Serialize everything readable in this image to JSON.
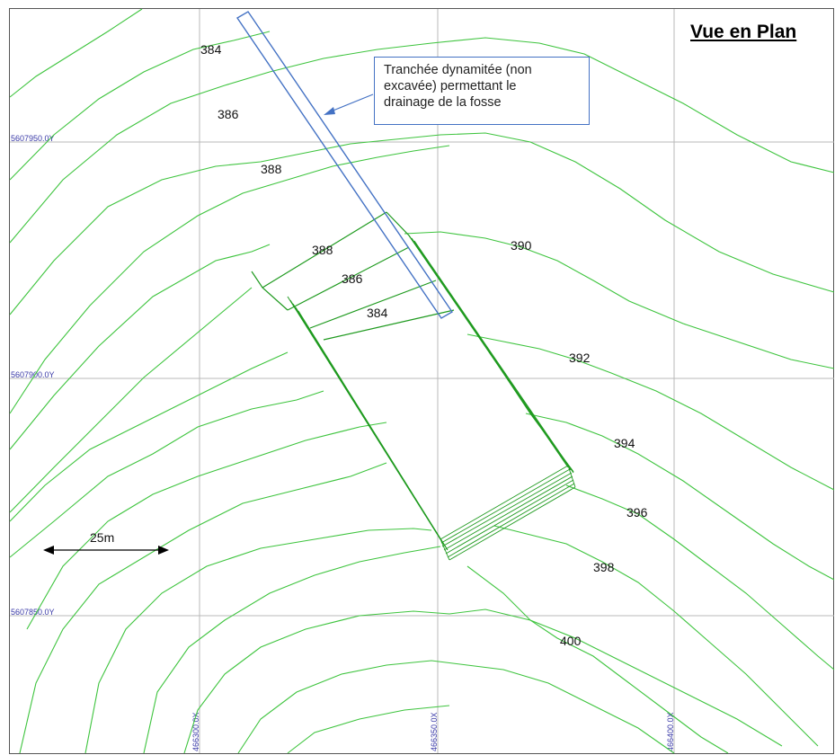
{
  "title": "Vue en Plan",
  "callout": {
    "lines": [
      "Tranchée dynamitée (non",
      "excavée) permettant le",
      "drainage de la fosse"
    ]
  },
  "grid": {
    "northings": [
      "5607950.0Y",
      "5607900.0Y",
      "5607850.0Y"
    ],
    "eastings": [
      "466300.0X",
      "466350.0X",
      "466400.0X"
    ]
  },
  "contour_labels": [
    {
      "id": "c384-top",
      "text": "384"
    },
    {
      "id": "c386-top",
      "text": "386"
    },
    {
      "id": "c388-top",
      "text": "388"
    },
    {
      "id": "c388-mid",
      "text": "388"
    },
    {
      "id": "c386-mid",
      "text": "386"
    },
    {
      "id": "c384-mid",
      "text": "384"
    },
    {
      "id": "c390",
      "text": "390"
    },
    {
      "id": "c392",
      "text": "392"
    },
    {
      "id": "c394",
      "text": "394"
    },
    {
      "id": "c396",
      "text": "396"
    },
    {
      "id": "c398",
      "text": "398"
    },
    {
      "id": "c400",
      "text": "400"
    }
  ],
  "scale_bar": {
    "label": "25m"
  },
  "colors": {
    "contour": "#3ec43e",
    "pit": "#1f9a1f",
    "trench": "#4472c4",
    "grid": "#b8b8b8",
    "coord": "#3a3aa8"
  }
}
